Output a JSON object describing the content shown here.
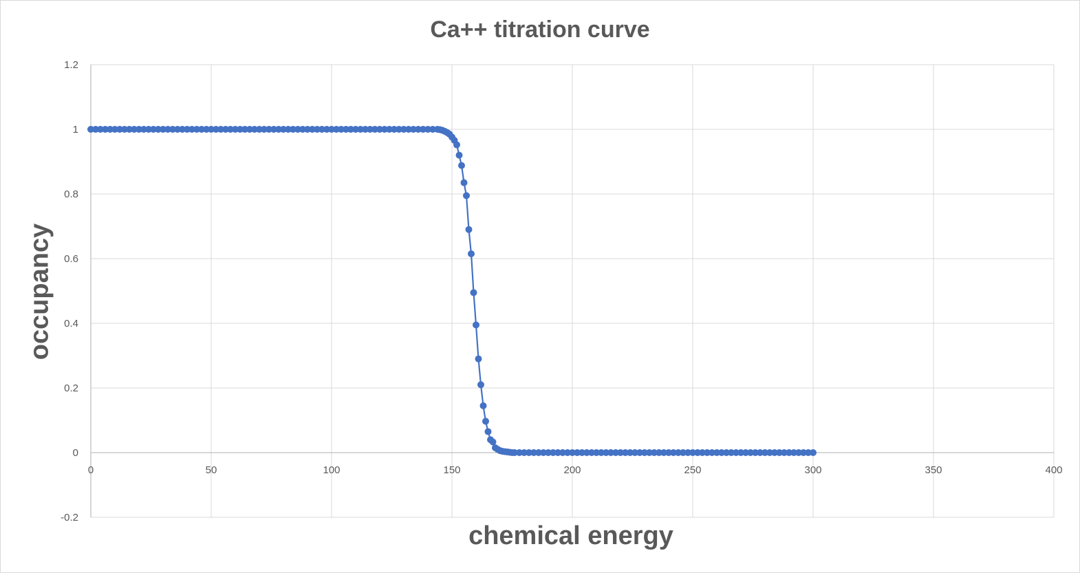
{
  "chart_data": {
    "type": "scatter",
    "title": "Ca++ titration curve",
    "xlabel": "chemical energy",
    "ylabel": "occupancy",
    "xlim": [
      0,
      400
    ],
    "ylim": [
      -0.2,
      1.2
    ],
    "xticks": [
      "0",
      "50",
      "100",
      "150",
      "200",
      "250",
      "300",
      "350",
      "400"
    ],
    "yticks": [
      "1.2",
      "1",
      "0.8",
      "0.6",
      "0.4",
      "0.2",
      "0",
      "-0.2"
    ],
    "grid": true,
    "legend": "none",
    "series": [
      {
        "color": "#4472c4",
        "marker": "circle",
        "line": true,
        "points": [
          [
            0,
            1
          ],
          [
            2,
            1
          ],
          [
            4,
            1
          ],
          [
            6,
            1
          ],
          [
            8,
            1
          ],
          [
            10,
            1
          ],
          [
            12,
            1
          ],
          [
            14,
            1
          ],
          [
            16,
            1
          ],
          [
            18,
            1
          ],
          [
            20,
            1
          ],
          [
            22,
            1
          ],
          [
            24,
            1
          ],
          [
            26,
            1
          ],
          [
            28,
            1
          ],
          [
            30,
            1
          ],
          [
            32,
            1
          ],
          [
            34,
            1
          ],
          [
            36,
            1
          ],
          [
            38,
            1
          ],
          [
            40,
            1
          ],
          [
            42,
            1
          ],
          [
            44,
            1
          ],
          [
            46,
            1
          ],
          [
            48,
            1
          ],
          [
            50,
            1
          ],
          [
            52,
            1
          ],
          [
            54,
            1
          ],
          [
            56,
            1
          ],
          [
            58,
            1
          ],
          [
            60,
            1
          ],
          [
            62,
            1
          ],
          [
            64,
            1
          ],
          [
            66,
            1
          ],
          [
            68,
            1
          ],
          [
            70,
            1
          ],
          [
            72,
            1
          ],
          [
            74,
            1
          ],
          [
            76,
            1
          ],
          [
            78,
            1
          ],
          [
            80,
            1
          ],
          [
            82,
            1
          ],
          [
            84,
            1
          ],
          [
            86,
            1
          ],
          [
            88,
            1
          ],
          [
            90,
            1
          ],
          [
            92,
            1
          ],
          [
            94,
            1
          ],
          [
            96,
            1
          ],
          [
            98,
            1
          ],
          [
            100,
            1
          ],
          [
            102,
            1
          ],
          [
            104,
            1
          ],
          [
            106,
            1
          ],
          [
            108,
            1
          ],
          [
            110,
            1
          ],
          [
            112,
            1
          ],
          [
            114,
            1
          ],
          [
            116,
            1
          ],
          [
            118,
            1
          ],
          [
            120,
            1
          ],
          [
            122,
            1
          ],
          [
            124,
            1
          ],
          [
            126,
            1
          ],
          [
            128,
            1
          ],
          [
            130,
            1
          ],
          [
            132,
            1
          ],
          [
            134,
            1
          ],
          [
            136,
            1
          ],
          [
            138,
            1
          ],
          [
            140,
            1
          ],
          [
            142,
            1
          ],
          [
            144,
            1
          ],
          [
            145,
            0.999
          ],
          [
            146,
            0.997
          ],
          [
            147,
            0.994
          ],
          [
            148,
            0.99
          ],
          [
            149,
            0.985
          ],
          [
            150,
            0.976
          ],
          [
            151,
            0.966
          ],
          [
            152,
            0.952
          ],
          [
            153,
            0.92
          ],
          [
            154,
            0.888
          ],
          [
            155,
            0.835
          ],
          [
            156,
            0.795
          ],
          [
            157,
            0.69
          ],
          [
            158,
            0.615
          ],
          [
            159,
            0.495
          ],
          [
            160,
            0.395
          ],
          [
            161,
            0.29
          ],
          [
            162,
            0.21
          ],
          [
            163,
            0.145
          ],
          [
            164,
            0.097
          ],
          [
            165,
            0.065
          ],
          [
            166,
            0.04
          ],
          [
            167,
            0.033
          ],
          [
            168,
            0.015
          ],
          [
            169,
            0.01
          ],
          [
            170,
            0.006
          ],
          [
            171,
            0.004
          ],
          [
            172,
            0.003
          ],
          [
            173,
            0.002
          ],
          [
            174,
            0.001
          ],
          [
            175,
            0
          ],
          [
            176,
            0
          ],
          [
            178,
            0
          ],
          [
            180,
            0
          ],
          [
            182,
            0
          ],
          [
            184,
            0
          ],
          [
            186,
            0
          ],
          [
            188,
            0
          ],
          [
            190,
            0
          ],
          [
            192,
            0
          ],
          [
            194,
            0
          ],
          [
            196,
            0
          ],
          [
            198,
            0
          ],
          [
            200,
            0
          ],
          [
            202,
            0
          ],
          [
            204,
            0
          ],
          [
            206,
            0
          ],
          [
            208,
            0
          ],
          [
            210,
            0
          ],
          [
            212,
            0
          ],
          [
            214,
            0
          ],
          [
            216,
            0
          ],
          [
            218,
            0
          ],
          [
            220,
            0
          ],
          [
            222,
            0
          ],
          [
            224,
            0
          ],
          [
            226,
            0
          ],
          [
            228,
            0
          ],
          [
            230,
            0
          ],
          [
            232,
            0
          ],
          [
            234,
            0
          ],
          [
            236,
            0
          ],
          [
            238,
            0
          ],
          [
            240,
            0
          ],
          [
            242,
            0
          ],
          [
            244,
            0
          ],
          [
            246,
            0
          ],
          [
            248,
            0
          ],
          [
            250,
            0
          ],
          [
            252,
            0
          ],
          [
            254,
            0
          ],
          [
            256,
            0
          ],
          [
            258,
            0
          ],
          [
            260,
            0
          ],
          [
            262,
            0
          ],
          [
            264,
            0
          ],
          [
            266,
            0
          ],
          [
            268,
            0
          ],
          [
            270,
            0
          ],
          [
            272,
            0
          ],
          [
            274,
            0
          ],
          [
            276,
            0
          ],
          [
            278,
            0
          ],
          [
            280,
            0
          ],
          [
            282,
            0
          ],
          [
            284,
            0
          ],
          [
            286,
            0
          ],
          [
            288,
            0
          ],
          [
            290,
            0
          ],
          [
            292,
            0
          ],
          [
            294,
            0
          ],
          [
            296,
            0
          ],
          [
            298,
            0
          ],
          [
            300,
            0
          ]
        ]
      }
    ]
  },
  "colors": {
    "series": "#4472c4",
    "grid": "#d9d9d9",
    "axis": "#bfbfbf",
    "text": "#595959"
  }
}
